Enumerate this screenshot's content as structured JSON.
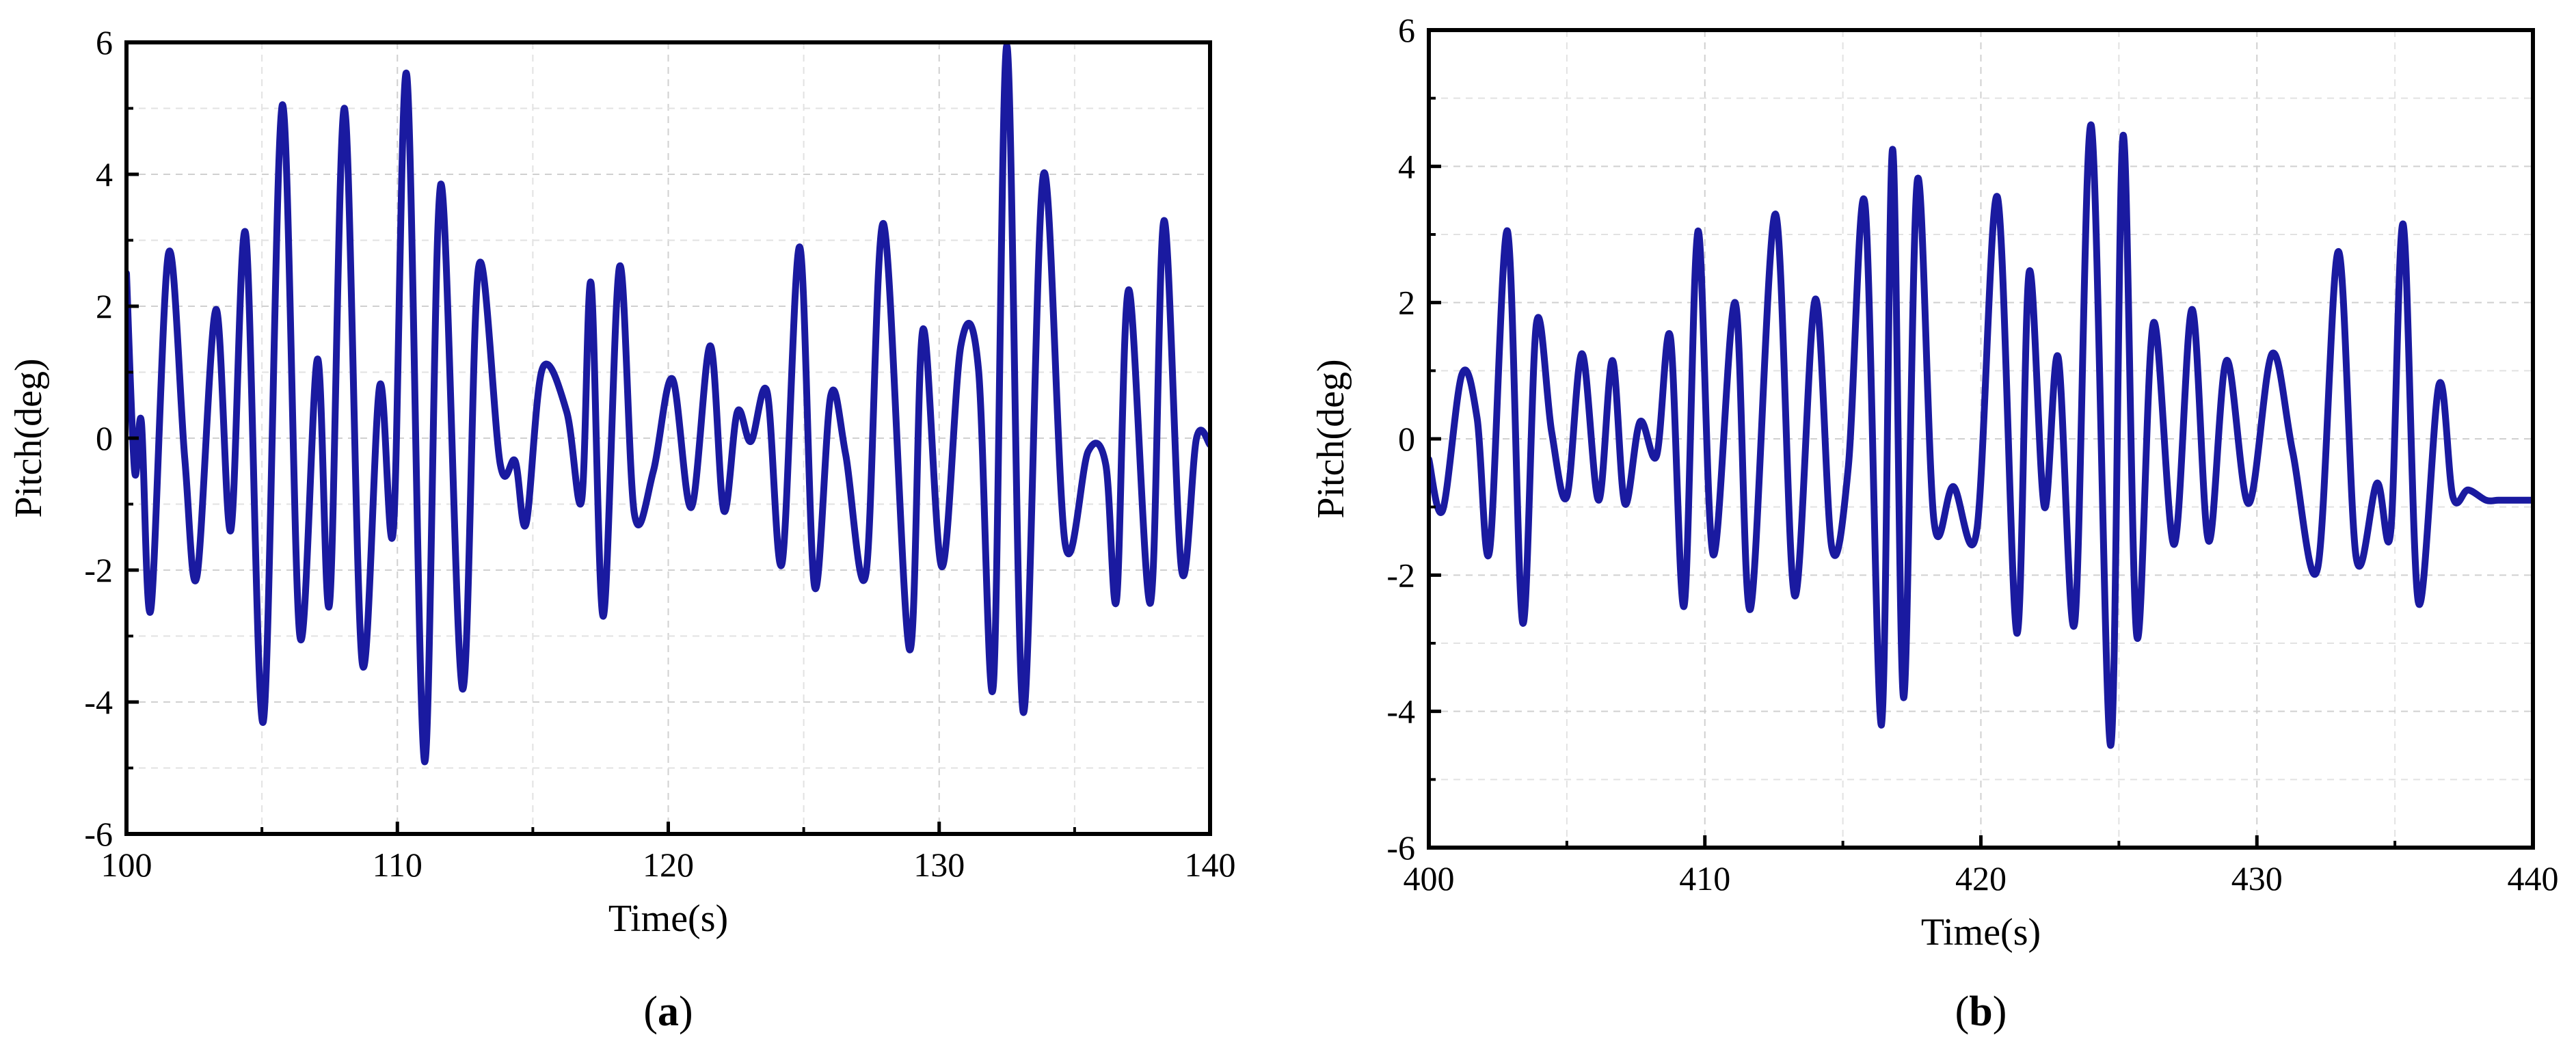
{
  "figure": {
    "panels": [
      {
        "open": "(",
        "letter": "a",
        "close": ")"
      },
      {
        "open": "(",
        "letter": "b",
        "close": ")"
      }
    ]
  },
  "chart_data": [
    {
      "type": "line",
      "title": "",
      "xlabel": "Time(s)",
      "ylabel": "Pitch(deg)",
      "xlim": [
        100,
        140
      ],
      "ylim": [
        -6,
        6
      ],
      "xticks": [
        100,
        110,
        120,
        130,
        140
      ],
      "yticks": [
        -6,
        -4,
        -2,
        0,
        2,
        4,
        6
      ],
      "grid": true,
      "line_color": "#1a1aa0",
      "series": [
        {
          "x": [
            100.0,
            100.3,
            100.55,
            100.9,
            101.55,
            102.15,
            102.6,
            103.3,
            103.85,
            104.4,
            105.05,
            105.75,
            106.4,
            107.05,
            107.5,
            108.05,
            108.7,
            109.35,
            109.85,
            110.35,
            111.0,
            111.6,
            112.4,
            113.0,
            113.8,
            114.35,
            114.75,
            115.35,
            116.25,
            116.8,
            117.15,
            117.6,
            118.2,
            118.75,
            119.45,
            120.15,
            120.85,
            121.55,
            122.05,
            122.55,
            123.05,
            123.65,
            124.2,
            124.85,
            125.4,
            126.0,
            126.55,
            127.3,
            127.95,
            128.9,
            129.4,
            130.1,
            130.8,
            131.45,
            132.0,
            132.5,
            133.1,
            133.85,
            134.65,
            135.5,
            136.15,
            136.55,
            137.0,
            137.8,
            138.3,
            138.95,
            139.5,
            140.0
          ],
          "y": [
            2.5,
            -0.5,
            0.25,
            -2.6,
            2.8,
            -0.3,
            -2.1,
            1.95,
            -1.4,
            3.1,
            -4.3,
            5.05,
            -3.0,
            1.2,
            -2.5,
            5.0,
            -3.4,
            0.8,
            -1.4,
            5.5,
            -4.9,
            3.85,
            -3.8,
            2.6,
            -0.4,
            -0.35,
            -1.3,
            1.05,
            0.4,
            -0.95,
            2.35,
            -2.7,
            2.6,
            -1.15,
            -0.5,
            0.9,
            -1.05,
            1.4,
            -1.1,
            0.4,
            -0.05,
            0.7,
            -1.9,
            2.9,
            -2.25,
            0.65,
            -0.25,
            -2.05,
            3.25,
            -3.2,
            1.65,
            -1.95,
            1.4,
            1.05,
            -3.75,
            5.95,
            -4.15,
            4.0,
            -1.6,
            -0.2,
            -0.4,
            -2.45,
            2.25,
            -2.5,
            3.3,
            -2.0,
            0.0,
            -0.1
          ]
        }
      ]
    },
    {
      "type": "line",
      "title": "",
      "xlabel": "Time(s)",
      "ylabel": "Pitch(deg)",
      "xlim": [
        400,
        440
      ],
      "ylim": [
        -6,
        6
      ],
      "xticks": [
        400,
        410,
        420,
        430,
        440
      ],
      "yticks": [
        -6,
        -4,
        -2,
        0,
        2,
        4,
        6
      ],
      "grid": true,
      "line_color": "#1a1aa0",
      "series": [
        {
          "x": [
            400.0,
            400.5,
            401.2,
            401.75,
            402.2,
            402.85,
            403.4,
            403.9,
            404.45,
            405.0,
            405.55,
            406.15,
            406.65,
            407.1,
            407.65,
            408.25,
            408.75,
            409.25,
            409.75,
            410.3,
            411.1,
            411.65,
            412.55,
            413.25,
            414.0,
            414.6,
            415.2,
            415.8,
            416.4,
            416.8,
            417.2,
            417.7,
            418.3,
            419.0,
            419.85,
            420.6,
            421.3,
            421.75,
            422.3,
            422.8,
            423.4,
            424.0,
            424.7,
            425.15,
            425.65,
            426.25,
            427.0,
            427.65,
            428.25,
            428.9,
            429.7,
            430.55,
            431.3,
            432.2,
            432.95,
            433.6,
            434.35,
            434.85,
            435.3,
            435.85,
            436.6,
            437.1,
            437.65,
            438.3,
            438.75,
            439.3,
            439.85,
            440.0
          ],
          "y": [
            -0.3,
            -1.05,
            0.95,
            0.3,
            -1.65,
            3.05,
            -2.7,
            1.7,
            0.1,
            -0.85,
            1.25,
            -0.9,
            1.15,
            -0.95,
            0.25,
            -0.25,
            1.5,
            -2.45,
            3.05,
            -1.7,
            2.0,
            -2.5,
            3.3,
            -2.3,
            2.05,
            -1.6,
            -0.4,
            3.45,
            -4.2,
            4.25,
            -3.8,
            3.8,
            -1.2,
            -0.7,
            -1.35,
            3.55,
            -2.85,
            2.45,
            -1.0,
            1.2,
            -2.7,
            4.6,
            -4.5,
            4.45,
            -2.9,
            1.7,
            -1.55,
            1.9,
            -1.5,
            1.15,
            -0.95,
            1.25,
            -0.2,
            -1.9,
            2.75,
            -1.75,
            -0.65,
            -1.35,
            3.15,
            -2.4,
            0.8,
            -0.85,
            -0.75,
            -0.9,
            -0.9,
            -0.9,
            -0.9,
            -0.9
          ]
        }
      ]
    }
  ]
}
